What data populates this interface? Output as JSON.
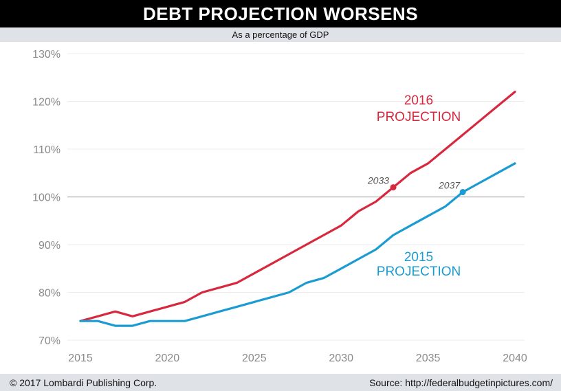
{
  "header": {
    "title": "DEBT PROJECTION WORSENS",
    "subtitle": "As a percentage of GDP"
  },
  "footer": {
    "copyright": "© 2017 Lombardi Publishing Corp.",
    "source": "Source: http://federalbudgetinpictures.com/"
  },
  "chart_data": {
    "type": "line",
    "title": "DEBT PROJECTION WORSENS",
    "subtitle": "As a percentage of GDP",
    "xlabel": "",
    "ylabel": "",
    "xlim": [
      2015,
      2040
    ],
    "ylim": [
      70,
      130
    ],
    "x_ticks": [
      2015,
      2020,
      2025,
      2030,
      2035,
      2040
    ],
    "x_tick_labels": [
      "2015",
      "2020",
      "2025",
      "2030",
      "2035",
      "2040"
    ],
    "y_ticks": [
      70,
      80,
      90,
      100,
      110,
      120,
      130
    ],
    "y_tick_labels": [
      "70%",
      "80%",
      "90%",
      "100%",
      "110%",
      "120%",
      "130%"
    ],
    "reference_line": 100,
    "grid": "horizontal",
    "series": [
      {
        "name": "2016 PROJECTION",
        "label_lines": [
          "2016",
          "PROJECTION"
        ],
        "color": "#d7283e",
        "x": [
          2015,
          2016,
          2017,
          2018,
          2019,
          2020,
          2021,
          2022,
          2023,
          2024,
          2025,
          2026,
          2027,
          2028,
          2029,
          2030,
          2031,
          2032,
          2033,
          2034,
          2035,
          2036,
          2037,
          2038,
          2039,
          2040
        ],
        "y": [
          74,
          75,
          76,
          75,
          76,
          77,
          78,
          80,
          81,
          82,
          84,
          86,
          88,
          90,
          92,
          94,
          97,
          99,
          102,
          105,
          107,
          110,
          113,
          116,
          119,
          122
        ],
        "marker": {
          "x": 2033,
          "y": 102,
          "label": "2033"
        }
      },
      {
        "name": "2015 PROJECTION",
        "label_lines": [
          "2015",
          "PROJECTION"
        ],
        "color": "#1a9bd1",
        "x": [
          2015,
          2016,
          2017,
          2018,
          2019,
          2020,
          2021,
          2022,
          2023,
          2024,
          2025,
          2026,
          2027,
          2028,
          2029,
          2030,
          2031,
          2032,
          2033,
          2034,
          2035,
          2036,
          2037,
          2038,
          2039,
          2040
        ],
        "y": [
          74,
          74,
          73,
          73,
          74,
          74,
          74,
          75,
          76,
          77,
          78,
          79,
          80,
          82,
          83,
          85,
          87,
          89,
          92,
          94,
          96,
          98,
          101,
          103,
          105,
          107
        ],
        "marker": {
          "x": 2037,
          "y": 101,
          "label": "2037"
        }
      }
    ]
  }
}
